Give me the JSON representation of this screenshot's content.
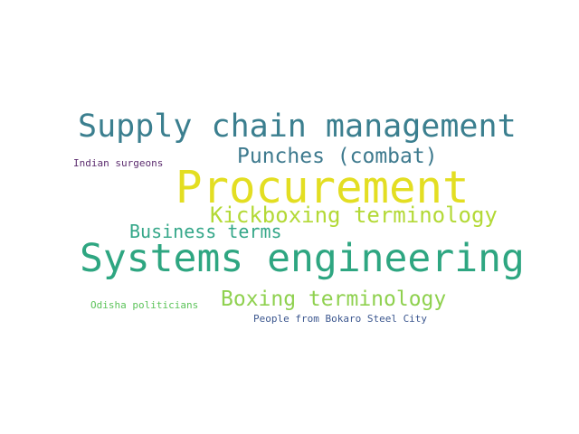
{
  "words": [
    {
      "text": "Supply chain management",
      "color": "#3b7f8f"
    },
    {
      "text": "Punches (combat)",
      "color": "#3e7a8e"
    },
    {
      "text": "Indian surgeons",
      "color": "#5b2b6e"
    },
    {
      "text": "Procurement",
      "color": "#e3de22"
    },
    {
      "text": "Kickboxing terminology",
      "color": "#b3d936"
    },
    {
      "text": "Business terms",
      "color": "#35a789"
    },
    {
      "text": "Systems engineering",
      "color": "#2ea681"
    },
    {
      "text": "Boxing terminology",
      "color": "#8fd14f"
    },
    {
      "text": "Odisha politicians",
      "color": "#5cc35a"
    },
    {
      "text": "People from Bokaro Steel City",
      "color": "#3c578f"
    }
  ]
}
